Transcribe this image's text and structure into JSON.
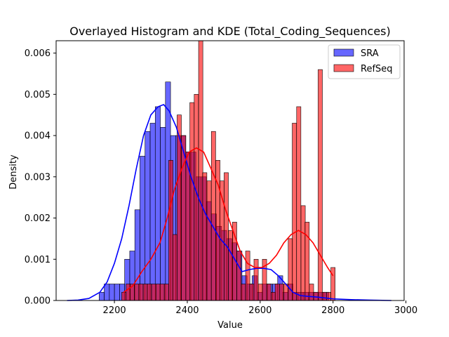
{
  "chart_data": {
    "type": "bar",
    "title": "Overlayed Histogram and KDE (Total_Coding_Sequences)",
    "xlabel": "Value",
    "ylabel": "Density",
    "xlim": [
      2040,
      2995
    ],
    "ylim": [
      0,
      0.0063
    ],
    "xticks": [
      2200,
      2400,
      2600,
      2800,
      3000
    ],
    "yticks": [
      0.0,
      0.001,
      0.002,
      0.003,
      0.004,
      0.005,
      0.006
    ],
    "ytick_labels": [
      "0.000",
      "0.001",
      "0.002",
      "0.003",
      "0.004",
      "0.005",
      "0.006"
    ],
    "grid": false,
    "legend_placement": "top-right",
    "series": [
      {
        "name": "SRA",
        "color": "#0000ff",
        "bin_width": 14,
        "hist": [
          [
            2158,
            0.0002
          ],
          [
            2172,
            0.0004
          ],
          [
            2186,
            0.0004
          ],
          [
            2200,
            0.0004
          ],
          [
            2214,
            0.0004
          ],
          [
            2228,
            0.001
          ],
          [
            2242,
            0.0012
          ],
          [
            2256,
            0.0022
          ],
          [
            2270,
            0.0035
          ],
          [
            2284,
            0.0041
          ],
          [
            2298,
            0.0043
          ],
          [
            2312,
            0.0047
          ],
          [
            2326,
            0.0042
          ],
          [
            2340,
            0.0053
          ],
          [
            2354,
            0.004
          ],
          [
            2368,
            0.004
          ],
          [
            2382,
            0.004
          ],
          [
            2396,
            0.0036
          ],
          [
            2410,
            0.0036
          ],
          [
            2424,
            0.003
          ],
          [
            2438,
            0.003
          ],
          [
            2452,
            0.0024
          ],
          [
            2466,
            0.0021
          ],
          [
            2480,
            0.0018
          ],
          [
            2494,
            0.0017
          ],
          [
            2508,
            0.0015
          ],
          [
            2522,
            0.0014
          ],
          [
            2536,
            0.0012
          ],
          [
            2550,
            0.0006
          ],
          [
            2564,
            0.0004
          ],
          [
            2578,
            0.0006
          ],
          [
            2592,
            0.0002
          ],
          [
            2606,
            0.0004
          ],
          [
            2620,
            0.0004
          ],
          [
            2634,
            0.0004
          ],
          [
            2648,
            0.0006
          ],
          [
            2662,
            0.0002
          ],
          [
            2676,
            0.0004
          ],
          [
            2690,
            0.0002
          ],
          [
            2704,
            0.0002
          ],
          [
            2718,
            0.0002
          ],
          [
            2732,
            0.0002
          ],
          [
            2746,
            0.0002
          ],
          [
            2760,
            0.0002
          ],
          [
            2774,
            0.0002
          ]
        ],
        "kde": [
          [
            2070,
            0.0
          ],
          [
            2100,
            1e-05
          ],
          [
            2130,
            5e-05
          ],
          [
            2160,
            0.0002
          ],
          [
            2180,
            0.00045
          ],
          [
            2200,
            0.0009
          ],
          [
            2220,
            0.0015
          ],
          [
            2240,
            0.0023
          ],
          [
            2260,
            0.0032
          ],
          [
            2280,
            0.004
          ],
          [
            2300,
            0.0045
          ],
          [
            2320,
            0.0047
          ],
          [
            2335,
            0.00475
          ],
          [
            2350,
            0.0046
          ],
          [
            2370,
            0.0042
          ],
          [
            2390,
            0.0036
          ],
          [
            2410,
            0.003
          ],
          [
            2430,
            0.0025
          ],
          [
            2450,
            0.0021
          ],
          [
            2470,
            0.0018
          ],
          [
            2490,
            0.0015
          ],
          [
            2510,
            0.0013
          ],
          [
            2530,
            0.001
          ],
          [
            2550,
            0.0007
          ],
          [
            2570,
            0.00075
          ],
          [
            2590,
            0.00078
          ],
          [
            2610,
            0.00078
          ],
          [
            2630,
            0.00075
          ],
          [
            2650,
            0.0006
          ],
          [
            2670,
            0.0004
          ],
          [
            2690,
            0.0002
          ],
          [
            2710,
            0.00012
          ],
          [
            2730,
            0.0001
          ],
          [
            2760,
            8e-05
          ],
          [
            2800,
            4e-05
          ],
          [
            2850,
            2e-05
          ],
          [
            2900,
            1e-05
          ],
          [
            2960,
            0.0
          ]
        ]
      },
      {
        "name": "RefSeq",
        "color": "#ff0000",
        "bin_width": 11.7,
        "hist": [
          [
            2220,
            0.0002
          ],
          [
            2232,
            0.0004
          ],
          [
            2243,
            0.0004
          ],
          [
            2255,
            0.0004
          ],
          [
            2267,
            0.0004
          ],
          [
            2279,
            0.0004
          ],
          [
            2290,
            0.0004
          ],
          [
            2302,
            0.0004
          ],
          [
            2314,
            0.0004
          ],
          [
            2325,
            0.0004
          ],
          [
            2337,
            0.0004
          ],
          [
            2349,
            0.0034
          ],
          [
            2360,
            0.0016
          ],
          [
            2372,
            0.0045
          ],
          [
            2384,
            0.004
          ],
          [
            2396,
            0.0036
          ],
          [
            2407,
            0.0048
          ],
          [
            2419,
            0.005
          ],
          [
            2431,
            0.0063
          ],
          [
            2442,
            0.0031
          ],
          [
            2454,
            0.0029
          ],
          [
            2466,
            0.0041
          ],
          [
            2478,
            0.0034
          ],
          [
            2489,
            0.0029
          ],
          [
            2501,
            0.0031
          ],
          [
            2513,
            0.0017
          ],
          [
            2524,
            0.0019
          ],
          [
            2536,
            0.0012
          ],
          [
            2548,
            0.0004
          ],
          [
            2560,
            0.0012
          ],
          [
            2571,
            0.0004
          ],
          [
            2583,
            0.001
          ],
          [
            2595,
            0.0004
          ],
          [
            2606,
            0.001
          ],
          [
            2618,
            0.0004
          ],
          [
            2630,
            0.0002
          ],
          [
            2641,
            0.0004
          ],
          [
            2653,
            0.0004
          ],
          [
            2665,
            0.0004
          ],
          [
            2677,
            0.0015
          ],
          [
            2688,
            0.0043
          ],
          [
            2700,
            0.0047
          ],
          [
            2712,
            0.0023
          ],
          [
            2723,
            0.0019
          ],
          [
            2735,
            0.0004
          ],
          [
            2747,
            0.0002
          ],
          [
            2759,
            0.0056
          ],
          [
            2770,
            0.0002
          ],
          [
            2782,
            0.0002
          ],
          [
            2794,
            0.0008
          ]
        ],
        "kde": [
          [
            2225,
            0.0002
          ],
          [
            2250,
            0.00035
          ],
          [
            2275,
            0.0007
          ],
          [
            2300,
            0.001
          ],
          [
            2325,
            0.0014
          ],
          [
            2345,
            0.002
          ],
          [
            2365,
            0.0027
          ],
          [
            2385,
            0.0032
          ],
          [
            2405,
            0.0036
          ],
          [
            2425,
            0.0037
          ],
          [
            2445,
            0.0036
          ],
          [
            2465,
            0.0032
          ],
          [
            2485,
            0.0028
          ],
          [
            2505,
            0.0022
          ],
          [
            2525,
            0.0017
          ],
          [
            2545,
            0.0012
          ],
          [
            2565,
            0.0009
          ],
          [
            2585,
            0.0008
          ],
          [
            2605,
            0.0008
          ],
          [
            2625,
            0.0009
          ],
          [
            2645,
            0.0011
          ],
          [
            2665,
            0.0014
          ],
          [
            2685,
            0.0016
          ],
          [
            2705,
            0.0017
          ],
          [
            2725,
            0.0016
          ],
          [
            2745,
            0.0014
          ],
          [
            2765,
            0.0011
          ],
          [
            2785,
            0.0008
          ],
          [
            2800,
            0.0006
          ]
        ]
      }
    ]
  }
}
